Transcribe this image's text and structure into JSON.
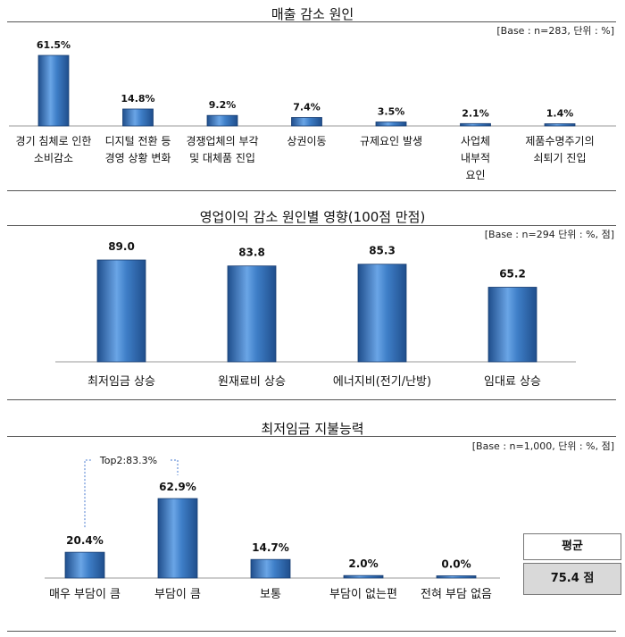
{
  "chart_data": [
    {
      "type": "bar",
      "title": "매출 감소 원인",
      "base_note": "[Base : n=283, 단위 : %]",
      "categories": [
        [
          "경기 침체로 인한",
          "소비감소"
        ],
        [
          "디지털 전환 등",
          "경영 상황 변화"
        ],
        [
          "경쟁업체의 부각",
          "및 대체품 진입"
        ],
        [
          "상권이동"
        ],
        [
          "규제요인 발생"
        ],
        [
          "사업체",
          "내부적",
          "요인"
        ],
        [
          "제품수명주기의",
          "쇠퇴기 진입"
        ]
      ],
      "values": [
        61.5,
        14.8,
        9.2,
        7.4,
        3.5,
        2.1,
        1.4
      ],
      "labels": [
        "61.5%",
        "14.8%",
        "9.2%",
        "7.4%",
        "3.5%",
        "2.1%",
        "1.4%"
      ],
      "ylim": [
        0,
        61.5
      ]
    },
    {
      "type": "bar",
      "title": "영업이익 감소 원인별 영향(100점 만점)",
      "base_note": "[Base : n=294 단위 : %, 점]",
      "categories": [
        "최저임금 상승",
        "원재료비 상승",
        "에너지비(전기/난방)",
        "임대료 상승"
      ],
      "values": [
        89.0,
        83.8,
        85.3,
        65.2
      ],
      "labels": [
        "89.0",
        "83.8",
        "85.3",
        "65.2"
      ],
      "ylim": [
        0,
        89.0
      ]
    },
    {
      "type": "bar",
      "title": "최저임금 지불능력",
      "base_note": "[Base : n=1,000, 단위 : %, 점]",
      "categories": [
        "매우 부담이 큼",
        "부담이 큼",
        "보통",
        "부담이 없는편",
        "전혀 부담 없음"
      ],
      "values": [
        20.4,
        62.9,
        14.7,
        2.0,
        0.0
      ],
      "labels": [
        "20.4%",
        "62.9%",
        "14.7%",
        "2.0%",
        "0.0%"
      ],
      "annotation": "Top2:83.3%",
      "summary": {
        "label": "평균",
        "value": "75.4 점"
      },
      "ylim": [
        0,
        62.9
      ]
    }
  ],
  "colors": {
    "bar_dark": "#1f4e8c",
    "bar_mid": "#3f7fc8",
    "bar_light": "#6aa5e6",
    "annotation": "#4a7bd0",
    "avg_bg": "#d9d9d9"
  }
}
